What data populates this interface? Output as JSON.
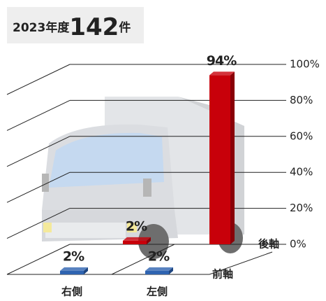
{
  "chart_data": {
    "type": "bar3d",
    "title_parts": [
      "2023年度",
      "142",
      "件"
    ],
    "categories": [
      "右側",
      "左側"
    ],
    "series": [
      {
        "name": "前軸",
        "color": "#2e63b0",
        "values": [
          2,
          2
        ],
        "value_labels": [
          "2%",
          "2%"
        ]
      },
      {
        "name": "後軸",
        "color": "#c8000a",
        "values": [
          2,
          94
        ],
        "value_labels": [
          "2%",
          "94%"
        ]
      }
    ],
    "ylim": [
      0,
      100
    ],
    "yticks": [
      {
        "value": 0,
        "label": "0%"
      },
      {
        "value": 20,
        "label": "20%"
      },
      {
        "value": 40,
        "label": "40%"
      },
      {
        "value": 60,
        "label": "60%"
      },
      {
        "value": 80,
        "label": "80%"
      },
      {
        "value": 100,
        "label": "100%"
      }
    ],
    "grid": true
  }
}
